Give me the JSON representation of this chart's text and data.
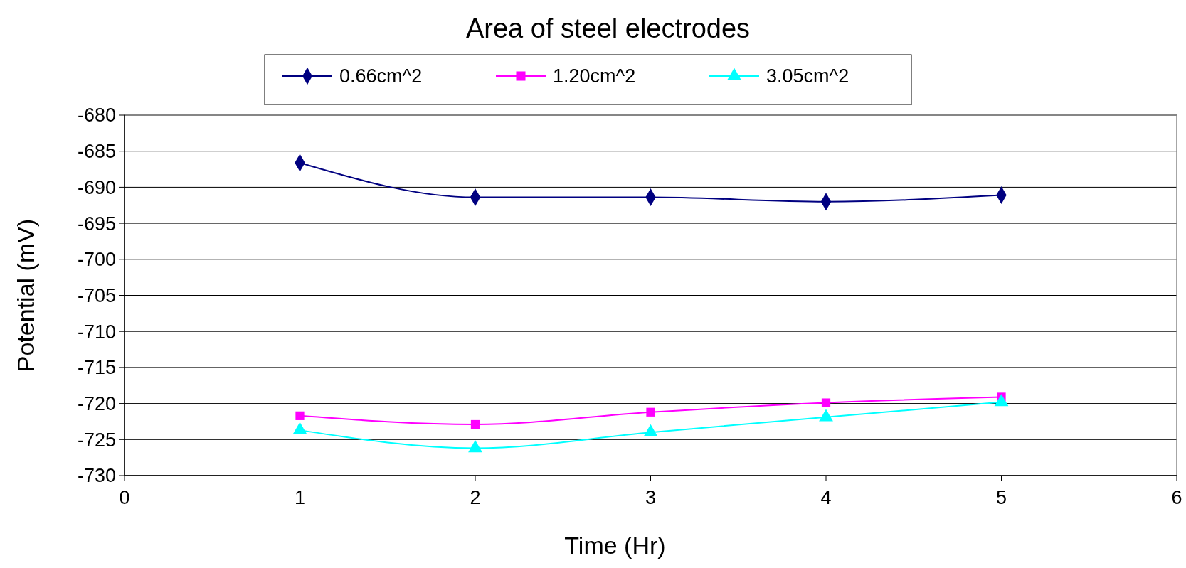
{
  "chart_data": {
    "type": "line",
    "title": "Area of steel electrodes",
    "xlabel": "Time (Hr)",
    "ylabel": "Potential (mV)",
    "x": [
      1,
      2,
      3,
      4,
      5
    ],
    "series": [
      {
        "name": "0.66cm^2",
        "color": "#000080",
        "marker": "diamond",
        "values": [
          -686.6,
          -691.4,
          -691.4,
          -692.0,
          -691.1
        ]
      },
      {
        "name": "1.20cm^2",
        "color": "#ff00ff",
        "marker": "square",
        "values": [
          -721.7,
          -722.9,
          -721.2,
          -719.9,
          -719.1
        ]
      },
      {
        "name": "3.05cm^2",
        "color": "#00ffff",
        "marker": "triangle",
        "values": [
          -723.7,
          -726.2,
          -724.0,
          -721.9,
          -719.8
        ]
      }
    ],
    "xlim": [
      0,
      6
    ],
    "xticks": [
      0,
      1,
      2,
      3,
      4,
      5,
      6
    ],
    "ylim": [
      -730,
      -680
    ],
    "yticks": [
      -730,
      -725,
      -720,
      -715,
      -710,
      -705,
      -700,
      -695,
      -690,
      -685,
      -680
    ],
    "grid": "y",
    "legend": "top"
  }
}
